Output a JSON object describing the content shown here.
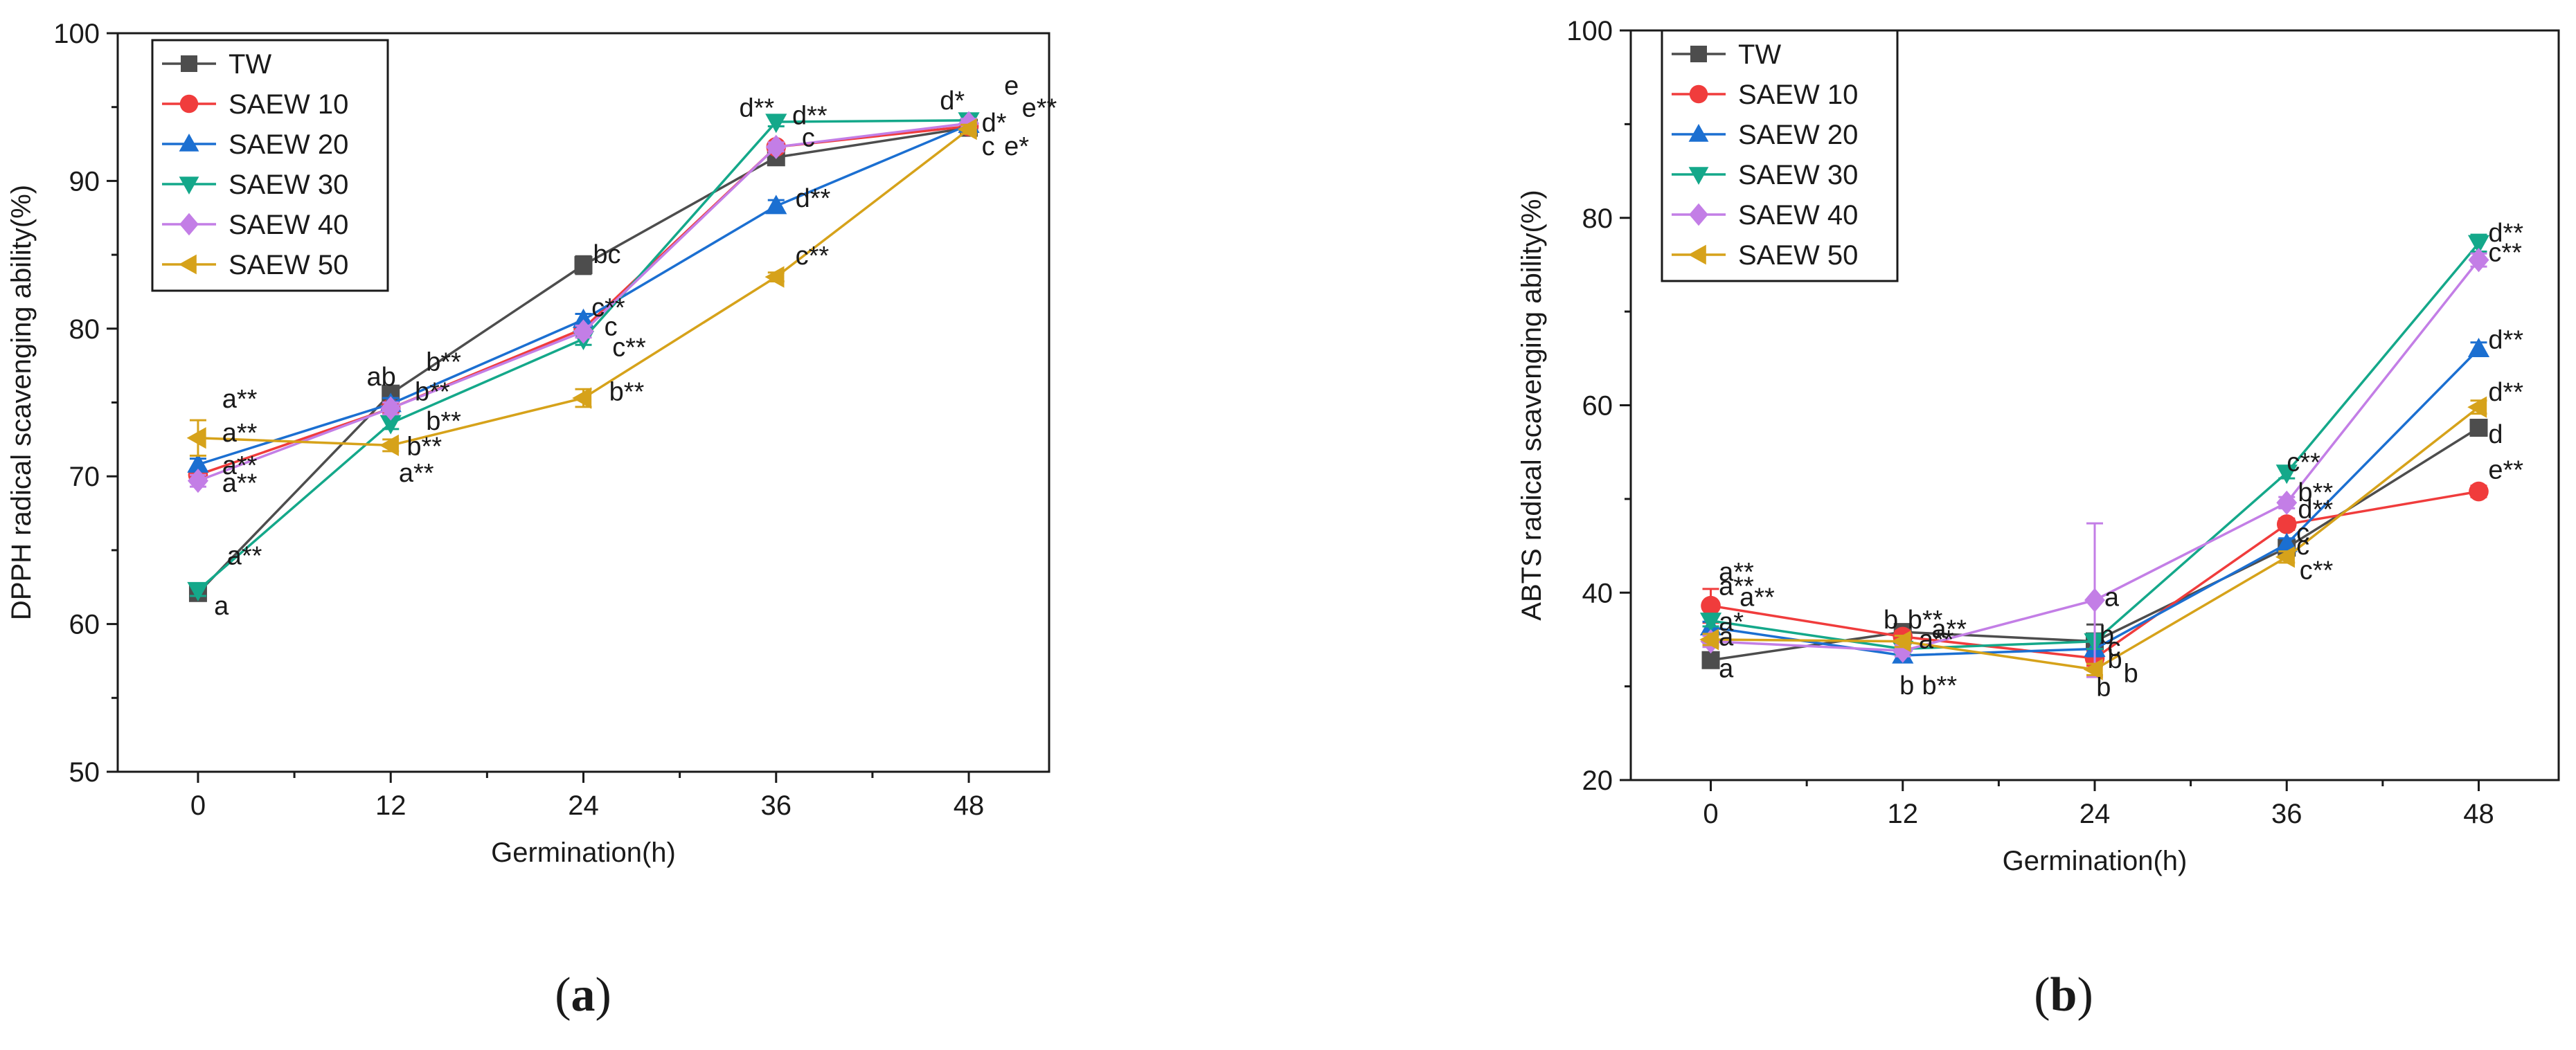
{
  "chart_data": [
    {
      "type": "line",
      "panel": "a",
      "panel_label": {
        "open": "(",
        "letter": "a",
        "close": ")"
      },
      "ylabel": "DPPH radical scavenging ability(%)",
      "xlabel": "Germination(h)",
      "x": [
        0,
        12,
        24,
        36,
        48
      ],
      "xticks": [
        "0",
        "12",
        "24",
        "36",
        "48"
      ],
      "xlim": [
        -5,
        53
      ],
      "ylim": [
        50,
        100
      ],
      "yticks": [
        "50",
        "60",
        "70",
        "80",
        "90",
        "100"
      ],
      "legend": "top-left",
      "series": [
        {
          "name": "TW",
          "color": "#4d4d4d",
          "marker": "square",
          "values": [
            62.1,
            75.6,
            84.3,
            91.6,
            93.6
          ],
          "errors": [
            0.4,
            0.4,
            0.6,
            0.3,
            0.3
          ]
        },
        {
          "name": "SAEW 10",
          "color": "#f03c3c",
          "marker": "circle",
          "values": [
            70.1,
            74.6,
            80.0,
            92.3,
            93.7
          ],
          "errors": [
            0.4,
            0.4,
            0.4,
            0.3,
            0.3
          ]
        },
        {
          "name": "SAEW 20",
          "color": "#1b6fd1",
          "marker": "triangle-up",
          "values": [
            70.8,
            74.9,
            80.6,
            88.3,
            93.8
          ],
          "errors": [
            0.4,
            0.4,
            0.4,
            0.4,
            0.3
          ]
        },
        {
          "name": "SAEW 30",
          "color": "#14a88a",
          "marker": "triangle-down",
          "values": [
            62.3,
            73.6,
            79.3,
            94.0,
            94.1
          ],
          "errors": [
            0.4,
            0.4,
            0.4,
            0.3,
            0.3
          ]
        },
        {
          "name": "SAEW 40",
          "color": "#c37ee6",
          "marker": "diamond",
          "values": [
            69.7,
            74.6,
            79.8,
            92.3,
            93.9
          ],
          "errors": [
            0.4,
            0.4,
            0.4,
            0.3,
            0.3
          ]
        },
        {
          "name": "SAEW 50",
          "color": "#d6a21a",
          "marker": "triangle-left",
          "values": [
            72.6,
            72.1,
            75.3,
            83.5,
            93.5
          ],
          "errors": [
            1.2,
            0.4,
            0.6,
            0.3,
            0.3
          ]
        }
      ],
      "annotations": [
        {
          "text": "a**",
          "x": 1.5,
          "y": 75.3
        },
        {
          "text": "a**",
          "x": 1.5,
          "y": 73.0
        },
        {
          "text": "a**",
          "x": 1.5,
          "y": 70.8
        },
        {
          "text": "a**",
          "x": 1.5,
          "y": 69.6
        },
        {
          "text": "a**",
          "x": 1.8,
          "y": 64.7
        },
        {
          "text": "a",
          "x": 1.0,
          "y": 61.3
        },
        {
          "text": "ab",
          "x": 10.5,
          "y": 76.8
        },
        {
          "text": "b**",
          "x": 14.2,
          "y": 77.8
        },
        {
          "text": "b**",
          "x": 13.5,
          "y": 75.8
        },
        {
          "text": "b**",
          "x": 14.2,
          "y": 73.8
        },
        {
          "text": "b**",
          "x": 13.0,
          "y": 72.1
        },
        {
          "text": "a**",
          "x": 12.5,
          "y": 70.3
        },
        {
          "text": "bc",
          "x": 24.6,
          "y": 85.1
        },
        {
          "text": "c**",
          "x": 24.5,
          "y": 81.5
        },
        {
          "text": "c",
          "x": 25.3,
          "y": 80.2
        },
        {
          "text": "c**",
          "x": 25.8,
          "y": 78.8
        },
        {
          "text": "b**",
          "x": 25.6,
          "y": 75.8
        },
        {
          "text": "d**",
          "x": 33.7,
          "y": 95.0
        },
        {
          "text": "d**",
          "x": 37.0,
          "y": 94.5
        },
        {
          "text": "c",
          "x": 37.6,
          "y": 93.0
        },
        {
          "text": "d**",
          "x": 37.2,
          "y": 88.9
        },
        {
          "text": "c**",
          "x": 37.2,
          "y": 85.0
        },
        {
          "text": "d*",
          "x": 46.2,
          "y": 95.5
        },
        {
          "text": "e",
          "x": 50.2,
          "y": 96.5
        },
        {
          "text": "e**",
          "x": 51.3,
          "y": 95.0
        },
        {
          "text": "d*",
          "x": 48.8,
          "y": 94.0
        },
        {
          "text": "c",
          "x": 48.8,
          "y": 92.4
        },
        {
          "text": "e*",
          "x": 50.2,
          "y": 92.4
        }
      ]
    },
    {
      "type": "line",
      "panel": "b",
      "panel_label": {
        "open": "(",
        "letter": "b",
        "close": ")"
      },
      "ylabel": "ABTS radical scavenging ability(%)",
      "xlabel": "Germination(h)",
      "x": [
        0,
        12,
        24,
        36,
        48
      ],
      "xticks": [
        "0",
        "12",
        "24",
        "36",
        "48"
      ],
      "xlim": [
        -5,
        53
      ],
      "ylim": [
        20,
        100
      ],
      "yticks": [
        "20",
        "40",
        "60",
        "80",
        "100"
      ],
      "legend": "top-left",
      "series": [
        {
          "name": "TW",
          "color": "#4d4d4d",
          "marker": "square",
          "values": [
            32.8,
            35.8,
            34.8,
            44.8,
            57.6
          ],
          "errors": [
            0.6,
            0.6,
            1.8,
            0.6,
            0.7
          ]
        },
        {
          "name": "SAEW 10",
          "color": "#f03c3c",
          "marker": "circle",
          "values": [
            38.6,
            35.3,
            33.0,
            47.3,
            50.8
          ],
          "errors": [
            1.8,
            0.6,
            0.8,
            0.6,
            0.6
          ]
        },
        {
          "name": "SAEW 20",
          "color": "#1b6fd1",
          "marker": "triangle-up",
          "values": [
            36.3,
            33.3,
            34.0,
            45.2,
            66.0
          ],
          "errors": [
            0.6,
            0.6,
            0.8,
            0.6,
            0.7
          ]
        },
        {
          "name": "SAEW 30",
          "color": "#14a88a",
          "marker": "triangle-down",
          "values": [
            37.0,
            34.0,
            34.8,
            52.8,
            77.3
          ],
          "errors": [
            0.6,
            0.6,
            0.8,
            0.6,
            0.9
          ]
        },
        {
          "name": "SAEW 40",
          "color": "#c37ee6",
          "marker": "diamond",
          "values": [
            34.8,
            33.8,
            39.2,
            49.6,
            75.5
          ],
          "errors": [
            0.6,
            0.6,
            8.2,
            0.6,
            0.7
          ]
        },
        {
          "name": "SAEW 50",
          "color": "#d6a21a",
          "marker": "triangle-left",
          "values": [
            35.0,
            34.8,
            31.8,
            43.8,
            59.8
          ],
          "errors": [
            0.6,
            0.6,
            0.6,
            0.6,
            0.7
          ]
        }
      ],
      "annotations": [
        {
          "text": "a**",
          "x": 0.5,
          "y": 42.3
        },
        {
          "text": "a**",
          "x": 0.5,
          "y": 40.8
        },
        {
          "text": "a**",
          "x": 1.8,
          "y": 39.6
        },
        {
          "text": "a*",
          "x": 0.5,
          "y": 37.0
        },
        {
          "text": "a",
          "x": 0.5,
          "y": 35.4
        },
        {
          "text": "a",
          "x": 0.5,
          "y": 32.0
        },
        {
          "text": "b",
          "x": 10.8,
          "y": 37.2
        },
        {
          "text": "b**",
          "x": 12.3,
          "y": 37.2
        },
        {
          "text": "a**",
          "x": 13.8,
          "y": 36.2
        },
        {
          "text": "a**",
          "x": 13.0,
          "y": 35.1
        },
        {
          "text": "b",
          "x": 11.8,
          "y": 30.2
        },
        {
          "text": "b**",
          "x": 13.2,
          "y": 30.2
        },
        {
          "text": "a",
          "x": 24.6,
          "y": 39.6
        },
        {
          "text": "b",
          "x": 24.3,
          "y": 35.6
        },
        {
          "text": "c",
          "x": 24.8,
          "y": 34.3
        },
        {
          "text": "b",
          "x": 24.8,
          "y": 33.0
        },
        {
          "text": "b",
          "x": 25.8,
          "y": 31.5
        },
        {
          "text": "b",
          "x": 24.1,
          "y": 30.0
        },
        {
          "text": "c**",
          "x": 36.0,
          "y": 54.0
        },
        {
          "text": "b**",
          "x": 36.7,
          "y": 50.8
        },
        {
          "text": "d**",
          "x": 36.7,
          "y": 49.0
        },
        {
          "text": "c",
          "x": 36.6,
          "y": 46.5
        },
        {
          "text": "c",
          "x": 36.6,
          "y": 45.1
        },
        {
          "text": "c**",
          "x": 36.8,
          "y": 42.5
        },
        {
          "text": "d**",
          "x": 48.6,
          "y": 78.5
        },
        {
          "text": "c**",
          "x": 48.6,
          "y": 76.4
        },
        {
          "text": "d**",
          "x": 48.6,
          "y": 67.1
        },
        {
          "text": "d**",
          "x": 48.6,
          "y": 61.5
        },
        {
          "text": "d",
          "x": 48.6,
          "y": 57.0
        },
        {
          "text": "e**",
          "x": 48.6,
          "y": 53.2
        }
      ]
    }
  ]
}
